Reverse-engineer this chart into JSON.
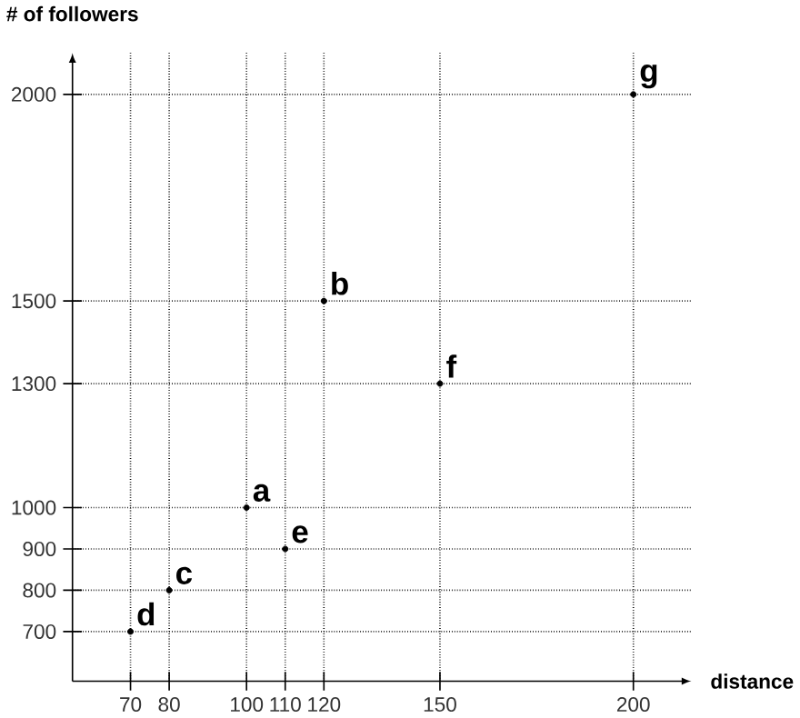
{
  "chart_data": {
    "type": "scatter",
    "xlabel": "distance",
    "ylabel": "# of followers",
    "x": [
      100,
      120,
      80,
      70,
      110,
      150,
      200
    ],
    "values": [
      1000,
      1500,
      800,
      700,
      900,
      1300,
      2000
    ],
    "color": "#000000",
    "marker": "circle",
    "grid": true,
    "xlim": [
      55,
      215
    ],
    "ylim": [
      580,
      2100
    ],
    "xticks": [
      70,
      80,
      100,
      110,
      120,
      150,
      200
    ],
    "yticks": [
      700,
      800,
      900,
      1000,
      1300,
      1500,
      2000
    ],
    "annotations": [
      {
        "text": "a",
        "x": 100,
        "y": 1000
      },
      {
        "text": "b",
        "x": 120,
        "y": 1500
      },
      {
        "text": "c",
        "x": 80,
        "y": 800
      },
      {
        "text": "d",
        "x": 70,
        "y": 700
      },
      {
        "text": "e",
        "x": 110,
        "y": 900
      },
      {
        "text": "f",
        "x": 150,
        "y": 1300
      },
      {
        "text": "g",
        "x": 200,
        "y": 2000
      }
    ]
  }
}
